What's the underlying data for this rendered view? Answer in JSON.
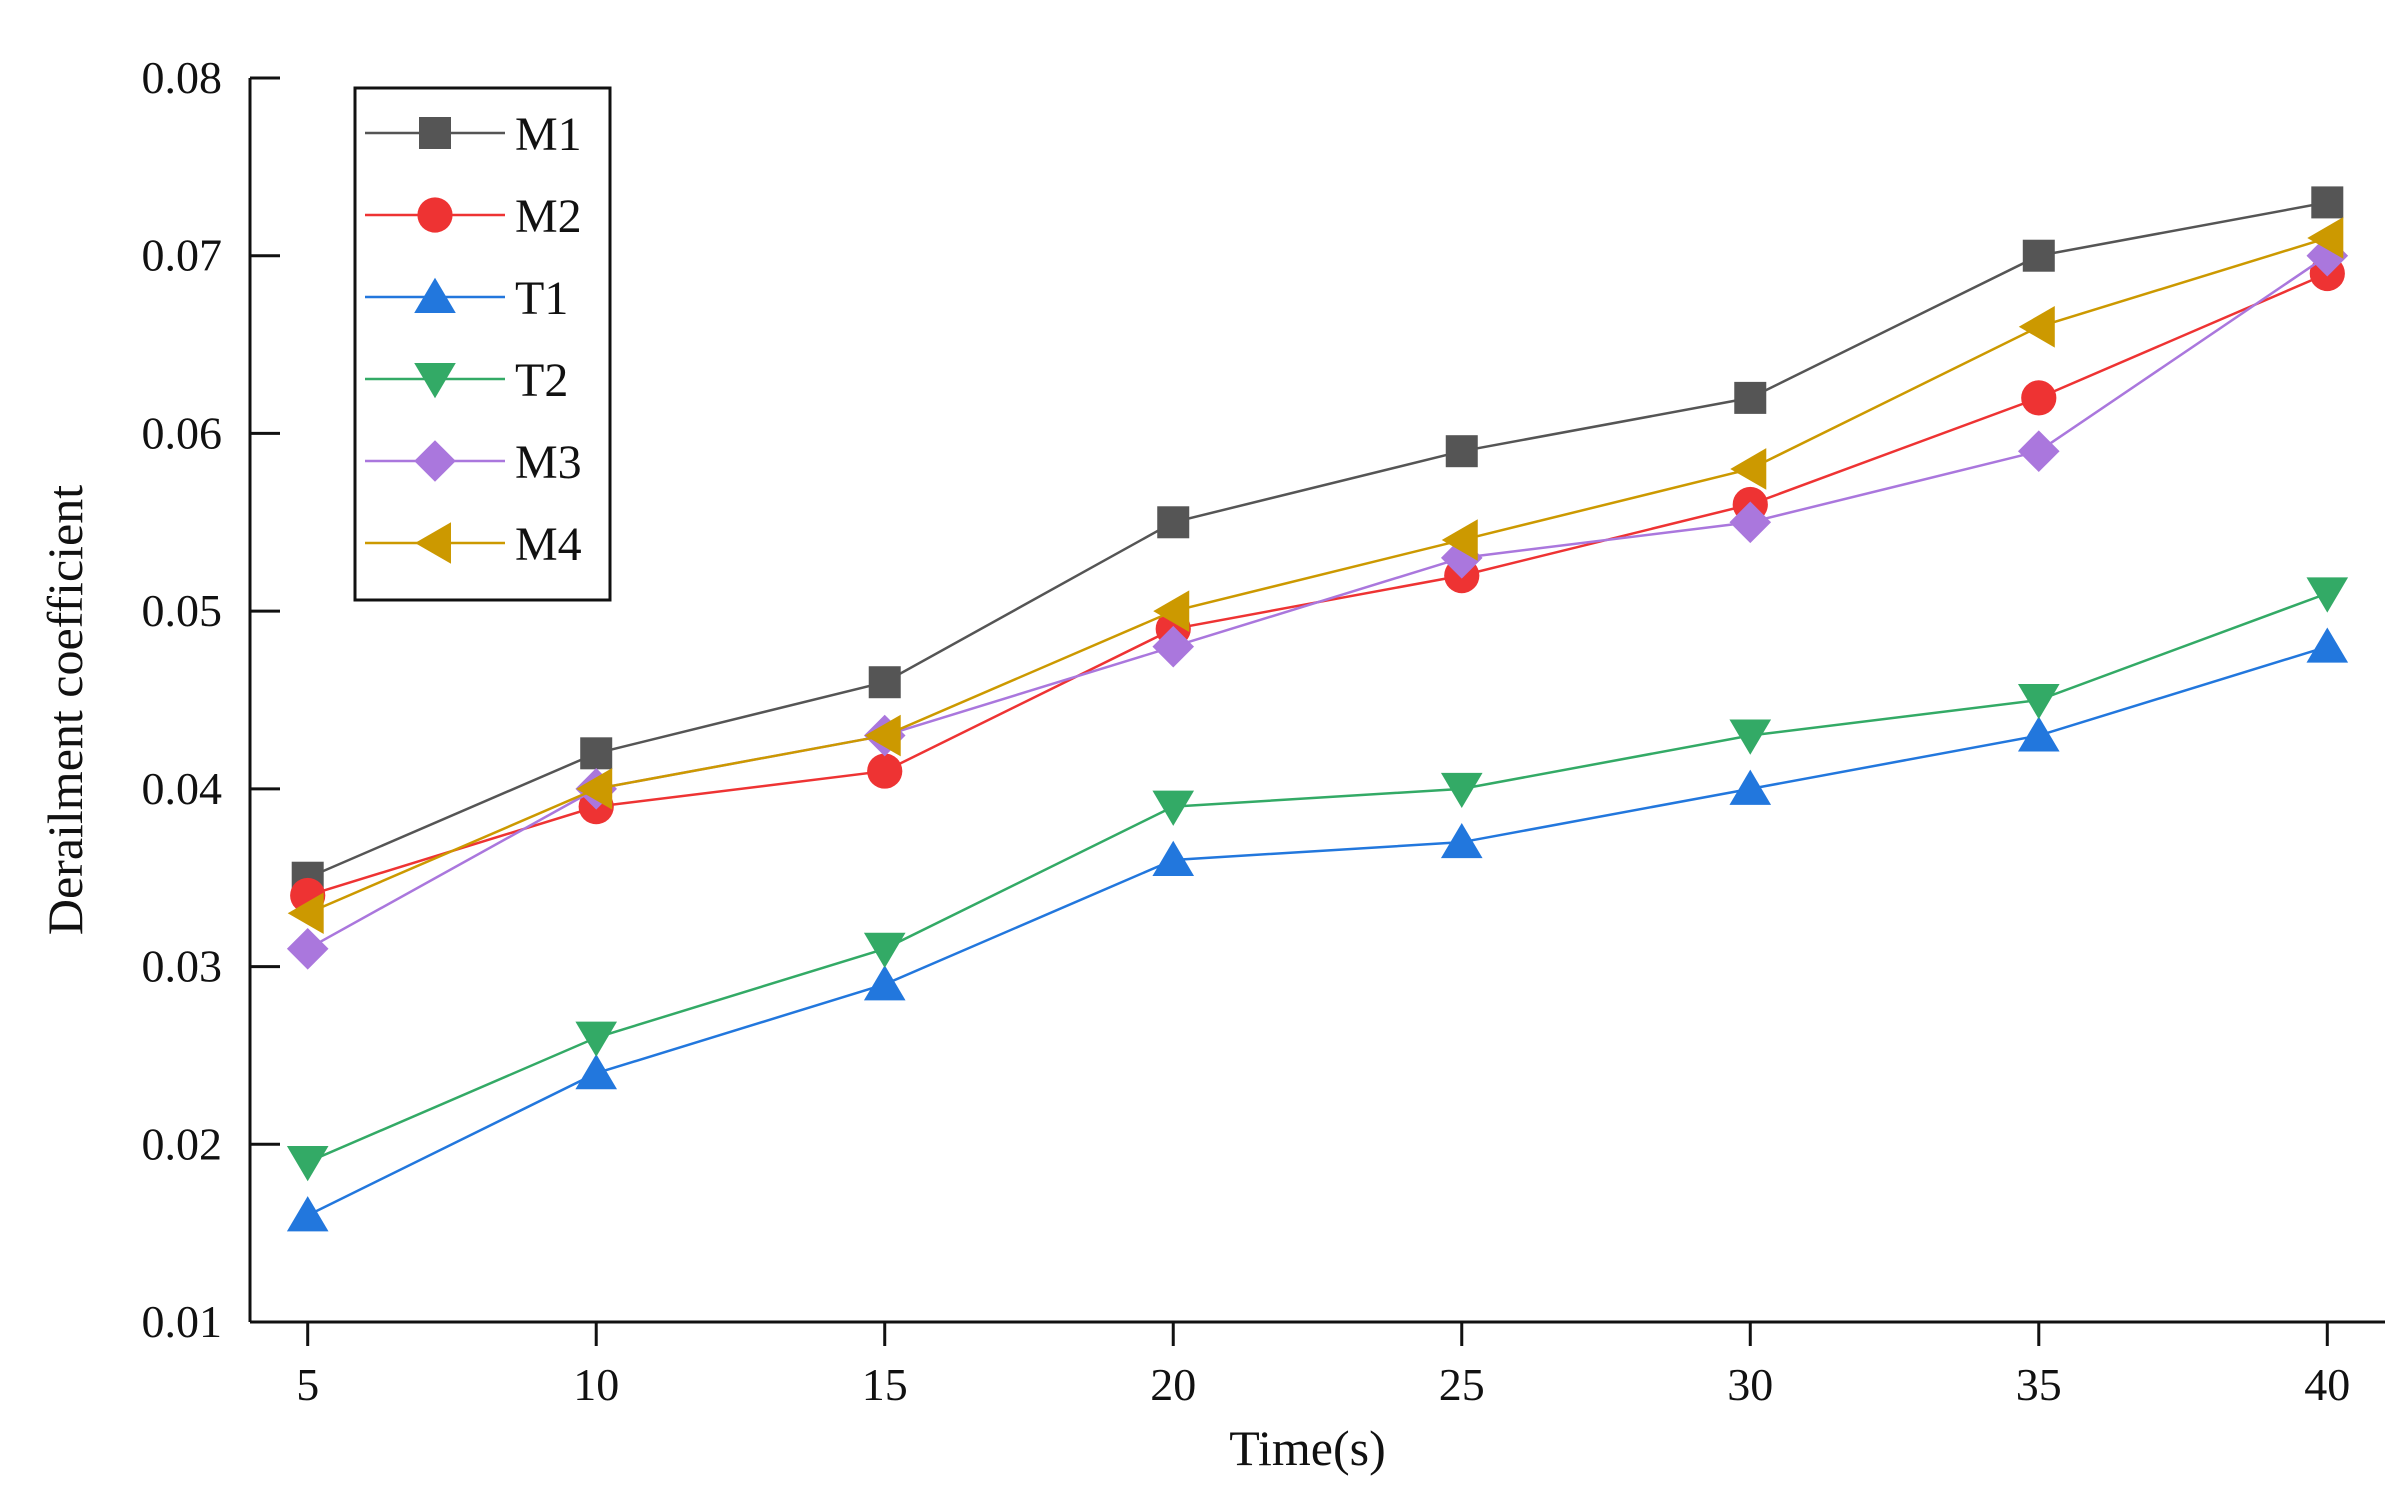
{
  "chart_data": {
    "type": "line",
    "title": "",
    "xlabel": "Time(s)",
    "ylabel": "Derailment coefficient",
    "x": [
      5,
      10,
      15,
      20,
      25,
      30,
      35,
      40
    ],
    "xlim": [
      4,
      41
    ],
    "ylim": [
      0.01,
      0.08
    ],
    "xticks": [
      5,
      10,
      15,
      20,
      25,
      30,
      35,
      40
    ],
    "yticks": [
      0.01,
      0.02,
      0.03,
      0.04,
      0.05,
      0.06,
      0.07,
      0.08
    ],
    "ytick_labels": [
      "0.01",
      "0.02",
      "0.03",
      "0.04",
      "0.05",
      "0.06",
      "0.07",
      "0.08"
    ],
    "grid": false,
    "legend_position": "top-left",
    "series": [
      {
        "name": "M1",
        "color": "#555555",
        "marker": "square",
        "values": [
          0.035,
          0.042,
          0.046,
          0.055,
          0.059,
          0.062,
          0.07,
          0.073
        ]
      },
      {
        "name": "M2",
        "color": "#ee3333",
        "marker": "circle",
        "values": [
          0.034,
          0.039,
          0.041,
          0.049,
          0.052,
          0.056,
          0.062,
          0.069
        ]
      },
      {
        "name": "T1",
        "color": "#2277dd",
        "marker": "triangle-up",
        "values": [
          0.016,
          0.024,
          0.029,
          0.036,
          0.037,
          0.04,
          0.043,
          0.048
        ]
      },
      {
        "name": "T2",
        "color": "#33aa66",
        "marker": "triangle-down",
        "values": [
          0.019,
          0.026,
          0.031,
          0.039,
          0.04,
          0.043,
          0.045,
          0.051
        ]
      },
      {
        "name": "M3",
        "color": "#aa77dd",
        "marker": "diamond",
        "values": [
          0.031,
          0.04,
          0.043,
          0.048,
          0.053,
          0.055,
          0.059,
          0.07
        ]
      },
      {
        "name": "M4",
        "color": "#cc9900",
        "marker": "triangle-left",
        "values": [
          0.033,
          0.04,
          0.043,
          0.05,
          0.054,
          0.058,
          0.066,
          0.071
        ]
      }
    ]
  }
}
